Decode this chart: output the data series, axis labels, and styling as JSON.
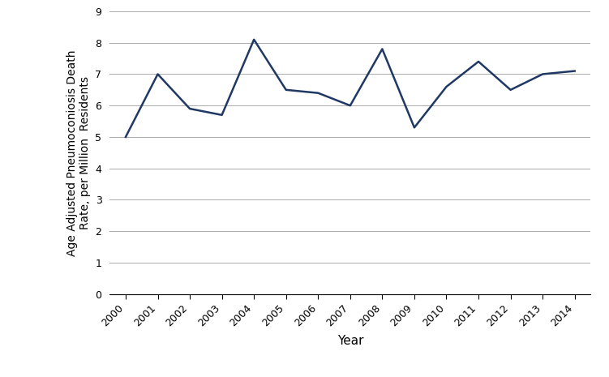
{
  "years": [
    2000,
    2001,
    2002,
    2003,
    2004,
    2005,
    2006,
    2007,
    2008,
    2009,
    2010,
    2011,
    2012,
    2013,
    2014
  ],
  "values": [
    5.0,
    7.0,
    5.9,
    5.7,
    8.1,
    6.5,
    6.4,
    6.0,
    7.8,
    5.3,
    6.6,
    7.4,
    6.5,
    7.0,
    7.1
  ],
  "line_color": "#1F3864",
  "line_width": 1.8,
  "ylabel": "Age Adjusted Pneumoconiosis Death\nRate, per Million  Residents",
  "xlabel": "Year",
  "ylim": [
    0,
    9
  ],
  "yticks": [
    0,
    1,
    2,
    3,
    4,
    5,
    6,
    7,
    8,
    9
  ],
  "grid_color": "#AAAAAA",
  "background_color": "#FFFFFF",
  "ylabel_fontsize": 10,
  "xlabel_fontsize": 11,
  "tick_fontsize": 9
}
